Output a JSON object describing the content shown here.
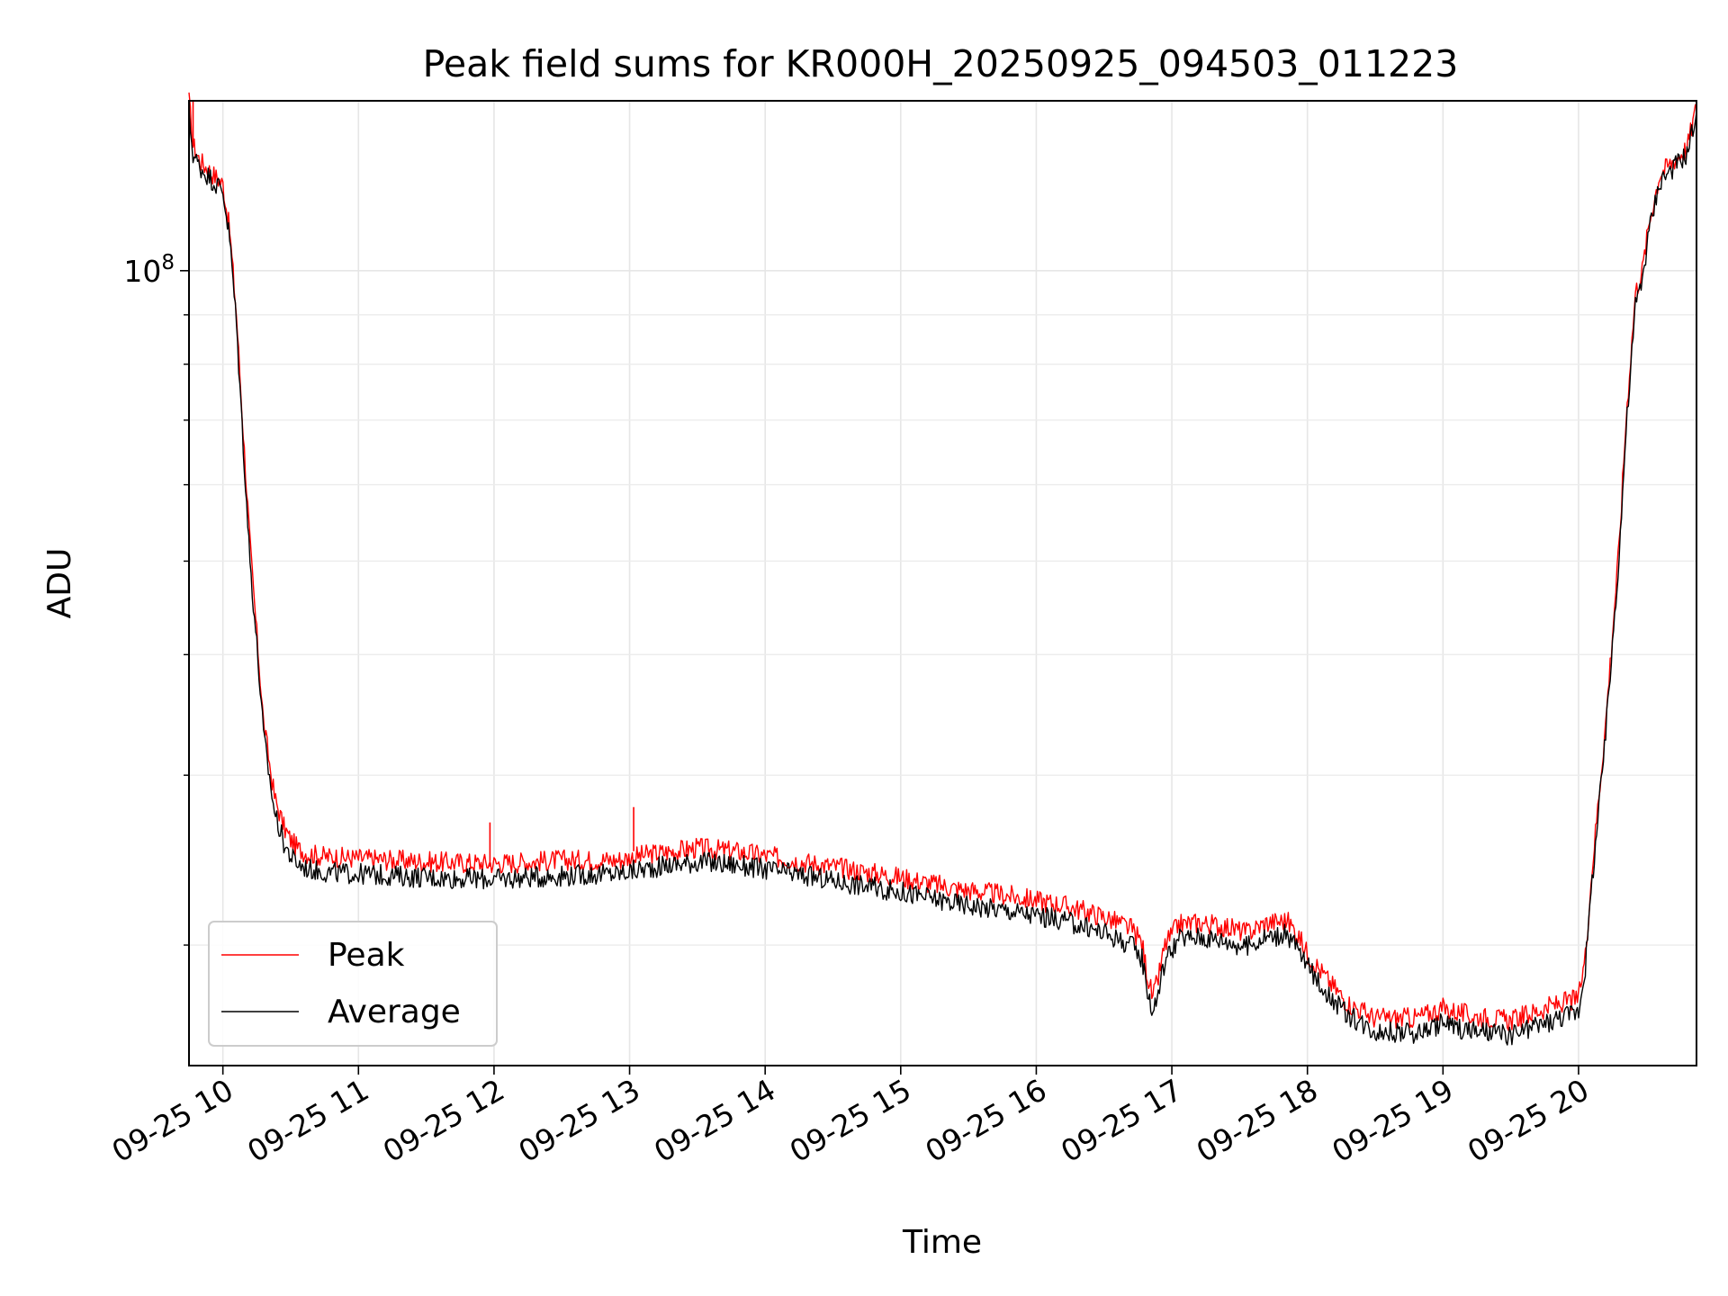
{
  "chart_data": {
    "type": "line",
    "title": "Peak field sums for KR000H_20250925_094503_011223",
    "xlabel": "Time",
    "ylabel": "ADU",
    "yscale": "log",
    "ylim": [
      15000000,
      150000000
    ],
    "xlim_hours": [
      9.75,
      20.87
    ],
    "grid": true,
    "legend_position": "lower-left",
    "x_tick_hours": [
      10,
      11,
      12,
      13,
      14,
      15,
      16,
      17,
      18,
      19,
      20
    ],
    "x_tick_labels": [
      "09-25 10",
      "09-25 11",
      "09-25 12",
      "09-25 13",
      "09-25 14",
      "09-25 15",
      "09-25 16",
      "09-25 17",
      "09-25 18",
      "09-25 19",
      "09-25 20"
    ],
    "y_major_ticks": [
      {
        "value": 100000000,
        "base": "10",
        "exp": "8"
      }
    ],
    "y_minor_ticks": [
      20000000,
      30000000,
      40000000,
      50000000,
      60000000,
      70000000,
      80000000,
      90000000
    ],
    "series": [
      {
        "name": "Peak",
        "color": "#ff0000",
        "x_hours": [
          9.75,
          9.78,
          9.83,
          9.9,
          10.0,
          10.05,
          10.1,
          10.15,
          10.2,
          10.25,
          10.3,
          10.38,
          10.45,
          10.5,
          10.55,
          10.62,
          10.75,
          11.0,
          11.5,
          12.0,
          12.5,
          12.9,
          13.2,
          13.5,
          13.8,
          14.2,
          14.6,
          15.0,
          15.4,
          15.8,
          16.2,
          16.5,
          16.7,
          16.78,
          16.82,
          16.86,
          16.9,
          16.95,
          17.05,
          17.2,
          17.4,
          17.55,
          17.7,
          17.85,
          17.92,
          18.0,
          18.15,
          18.3,
          18.5,
          18.8,
          19.0,
          19.2,
          19.5,
          19.8,
          20.0,
          20.05,
          20.1,
          20.2,
          20.3,
          20.35,
          20.42,
          20.47,
          20.52,
          20.6,
          20.7,
          20.8,
          20.87
        ],
        "y": [
          150000000,
          135000000,
          130000000,
          127000000,
          123000000,
          110000000,
          90000000,
          68000000,
          52000000,
          42000000,
          34000000,
          28500000,
          26500000,
          25700000,
          25200000,
          24900000,
          24700000,
          24600000,
          24400000,
          24300000,
          24500000,
          24500000,
          24900000,
          25200000,
          25000000,
          24500000,
          24000000,
          23500000,
          22900000,
          22500000,
          22000000,
          21400000,
          20800000,
          20100000,
          18600000,
          17600000,
          18500000,
          20000000,
          21000000,
          21100000,
          20900000,
          20600000,
          21100000,
          21200000,
          20600000,
          19600000,
          18400000,
          17400000,
          16800000,
          16800000,
          17200000,
          16900000,
          16700000,
          17300000,
          17600000,
          19500000,
          24000000,
          34000000,
          52000000,
          70000000,
          95000000,
          100000000,
          112000000,
          126000000,
          130000000,
          134000000,
          148000000
        ]
      },
      {
        "name": "Average",
        "color": "#000000",
        "x_hours": [
          9.75,
          9.78,
          9.83,
          9.9,
          10.0,
          10.05,
          10.1,
          10.15,
          10.2,
          10.25,
          10.3,
          10.38,
          10.45,
          10.5,
          10.55,
          10.62,
          10.75,
          11.0,
          11.5,
          12.0,
          12.5,
          12.9,
          13.2,
          13.5,
          13.8,
          14.2,
          14.6,
          15.0,
          15.4,
          15.8,
          16.2,
          16.5,
          16.7,
          16.78,
          16.82,
          16.86,
          16.9,
          16.95,
          17.05,
          17.2,
          17.4,
          17.55,
          17.7,
          17.85,
          17.92,
          18.0,
          18.15,
          18.3,
          18.5,
          18.8,
          19.0,
          19.2,
          19.5,
          19.8,
          20.0,
          20.05,
          20.1,
          20.2,
          20.3,
          20.35,
          20.42,
          20.47,
          20.52,
          20.6,
          20.7,
          20.8,
          20.87
        ],
        "y": [
          145000000,
          132000000,
          128000000,
          125000000,
          121000000,
          108000000,
          88000000,
          66000000,
          50000000,
          41000000,
          33000000,
          27500000,
          25500000,
          24700000,
          24300000,
          24000000,
          23800000,
          23700000,
          23500000,
          23400000,
          23600000,
          23700000,
          24100000,
          24400000,
          24200000,
          23700000,
          23200000,
          22700000,
          22100000,
          21700000,
          21200000,
          20600000,
          20000000,
          19400000,
          18000000,
          17000000,
          17900000,
          19300000,
          20300000,
          20400000,
          20200000,
          19900000,
          20400000,
          20500000,
          19900000,
          19000000,
          17800000,
          16900000,
          16300000,
          16200000,
          16600000,
          16300000,
          16100000,
          16700000,
          17100000,
          19000000,
          23300000,
          33000000,
          51000000,
          68000000,
          92000000,
          98000000,
          110000000,
          124000000,
          128000000,
          132000000,
          146000000
        ]
      }
    ],
    "spikes": [
      {
        "series": "Peak",
        "x_hour": 9.78,
        "y": 150000000
      },
      {
        "series": "Peak",
        "x_hour": 11.97,
        "y": 26800000
      },
      {
        "series": "Peak",
        "x_hour": 13.03,
        "y": 27800000
      }
    ]
  }
}
